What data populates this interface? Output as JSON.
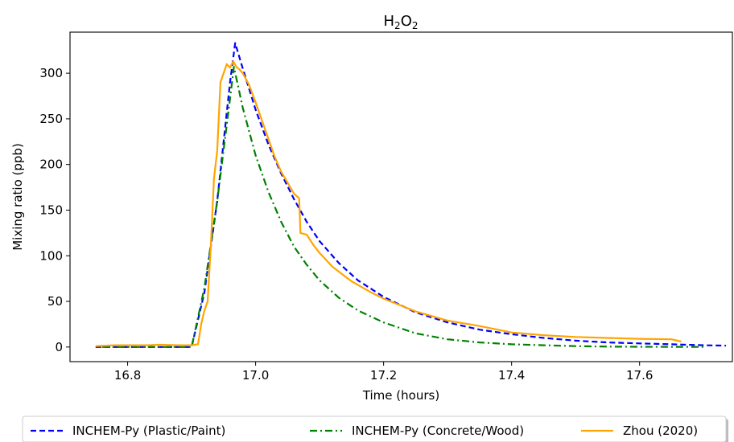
{
  "chart_data": {
    "type": "line",
    "title": "H2O2",
    "title_parts": {
      "main": "H",
      "sub1": "2",
      "mid": "O",
      "sub2": "2"
    },
    "xlabel": "Time (hours)",
    "ylabel": "Mixing ratio (ppb)",
    "xlim": [
      16.71,
      17.745
    ],
    "ylim": [
      -16,
      345
    ],
    "xticks": [
      16.8,
      17.0,
      17.2,
      17.4,
      17.6
    ],
    "xtick_labels": [
      "16.8",
      "17.0",
      "17.2",
      "17.4",
      "17.6"
    ],
    "yticks": [
      0,
      50,
      100,
      150,
      200,
      250,
      300
    ],
    "ytick_labels": [
      "0",
      "50",
      "100",
      "150",
      "200",
      "250",
      "300"
    ],
    "grid": false,
    "legend_position": "bottom-outside",
    "series": [
      {
        "name": "INCHEM-Py (Plastic/Paint)",
        "color": "#0000ff",
        "style": "dashed",
        "x": [
          16.75,
          16.85,
          16.9,
          16.92,
          16.94,
          16.96,
          16.968,
          16.98,
          17.0,
          17.02,
          17.04,
          17.06,
          17.08,
          17.1,
          17.13,
          17.16,
          17.2,
          17.25,
          17.3,
          17.35,
          17.4,
          17.45,
          17.5,
          17.55,
          17.6,
          17.65,
          17.7,
          17.735
        ],
        "y": [
          0,
          0,
          0,
          60,
          160,
          290,
          333,
          305,
          260,
          222,
          190,
          162,
          137,
          116,
          92,
          73,
          55,
          38,
          27,
          19,
          14,
          10,
          7,
          5,
          4,
          3,
          2,
          1.5
        ]
      },
      {
        "name": "INCHEM-Py (Concrete/Wood)",
        "color": "#008000",
        "style": "dashdot",
        "x": [
          16.76,
          16.85,
          16.9,
          16.92,
          16.94,
          16.96,
          16.966,
          16.98,
          17.0,
          17.02,
          17.04,
          17.06,
          17.08,
          17.1,
          17.13,
          17.16,
          17.2,
          17.25,
          17.3,
          17.35,
          17.4,
          17.45,
          17.5,
          17.55,
          17.6,
          17.65,
          17.7
        ],
        "y": [
          0,
          0,
          0,
          65,
          160,
          272,
          307,
          262,
          210,
          170,
          137,
          110,
          90,
          73,
          54,
          40,
          27,
          15,
          8.5,
          5,
          3,
          2,
          1,
          0.5,
          0.3,
          0.2,
          0.1
        ]
      },
      {
        "name": "Zhou (2020)",
        "color": "#ffa500",
        "style": "solid",
        "x": [
          16.75,
          16.78,
          16.8,
          16.83,
          16.85,
          16.88,
          16.9,
          16.91,
          16.915,
          16.92,
          16.925,
          16.93,
          16.935,
          16.94,
          16.945,
          16.95,
          16.955,
          16.96,
          16.965,
          16.97,
          16.975,
          16.98,
          16.99,
          17.0,
          17.01,
          17.02,
          17.03,
          17.04,
          17.05,
          17.06,
          17.068,
          17.07,
          17.08,
          17.09,
          17.1,
          17.12,
          17.15,
          17.18,
          17.2,
          17.25,
          17.3,
          17.35,
          17.4,
          17.45,
          17.5,
          17.55,
          17.6,
          17.65,
          17.665
        ],
        "y": [
          1,
          2,
          2,
          2,
          2.5,
          2,
          2,
          3,
          25,
          40,
          50,
          110,
          185,
          215,
          290,
          300,
          310,
          306,
          313,
          307,
          304,
          300,
          287,
          268,
          248,
          228,
          208,
          192,
          180,
          168,
          163,
          125,
          123,
          112,
          103,
          88,
          72,
          60,
          53,
          39,
          29,
          23,
          16,
          13,
          11,
          10,
          9,
          8.5,
          6
        ]
      }
    ]
  }
}
